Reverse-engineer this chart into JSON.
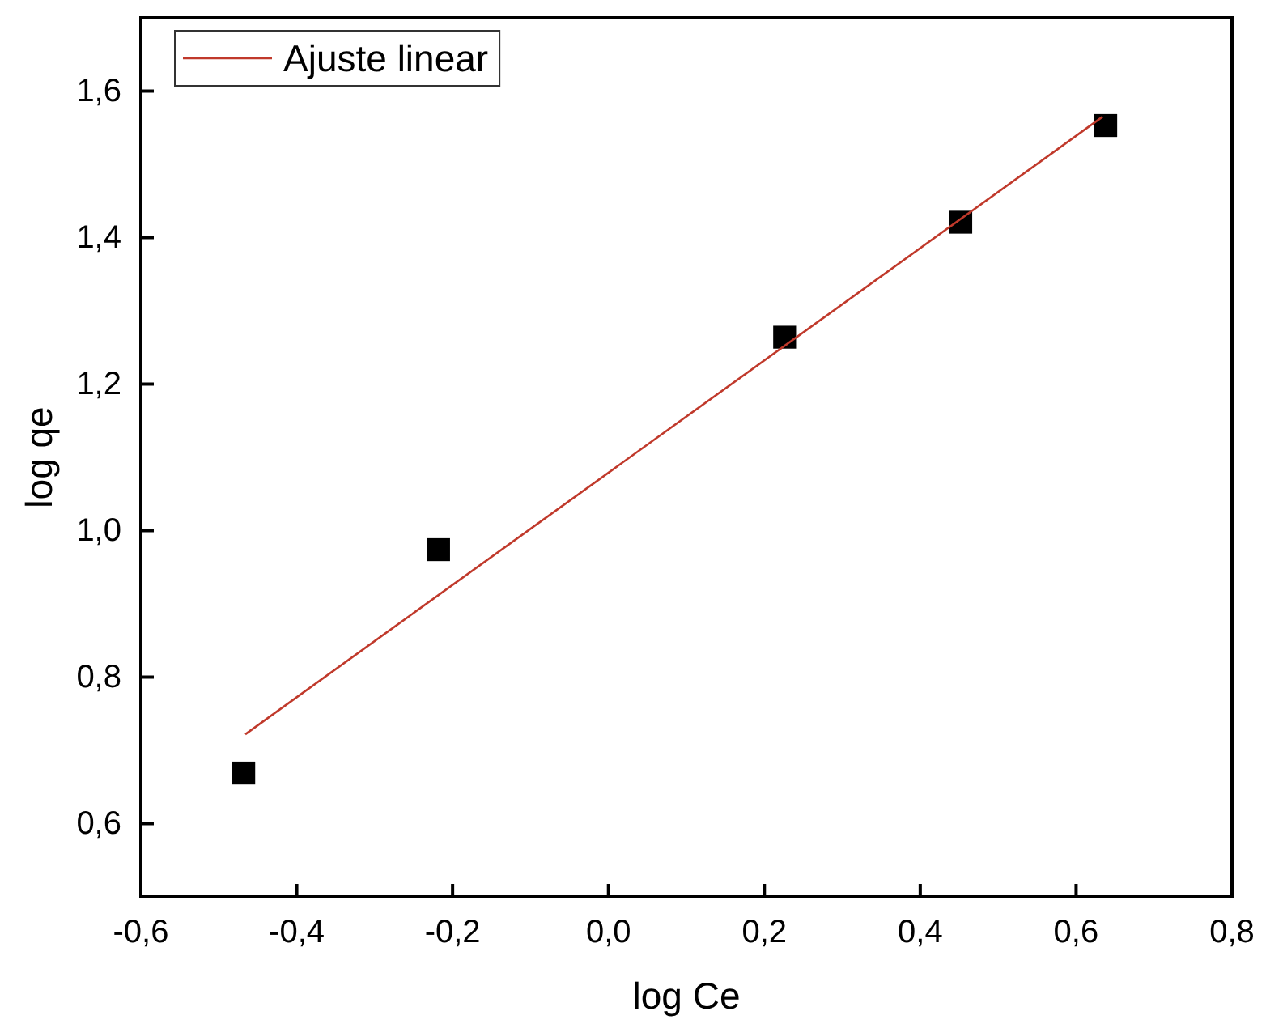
{
  "chart_data": {
    "type": "scatter",
    "xlabel": "log Ce",
    "ylabel": "log qe",
    "xlim": [
      -0.6,
      0.8
    ],
    "xticks": [
      {
        "value": -0.6,
        "label": "-0,6"
      },
      {
        "value": -0.4,
        "label": "-0,4"
      },
      {
        "value": -0.2,
        "label": "-0,2"
      },
      {
        "value": 0,
        "label": "0,0"
      },
      {
        "value": 0.2,
        "label": "0,2"
      },
      {
        "value": 0.4,
        "label": "0,4"
      },
      {
        "value": 0.6,
        "label": "0,6"
      },
      {
        "value": 0.8,
        "label": "0,8"
      }
    ],
    "ylim": [
      0.5,
      1.7
    ],
    "yticks": [
      {
        "value": 0.6,
        "label": "0,6"
      },
      {
        "value": 0.8,
        "label": "0,8"
      },
      {
        "value": 1.0,
        "label": "1,0"
      },
      {
        "value": 1.2,
        "label": "1,2"
      },
      {
        "value": 1.4,
        "label": "1,4"
      },
      {
        "value": 1.6,
        "label": "1,6"
      }
    ],
    "grid": false,
    "legend": "top left",
    "marker": "square",
    "series": [
      {
        "color": "#000000",
        "x": [
          -0.468,
          -0.218,
          0.226,
          0.452,
          0.638
        ],
        "values": [
          0.669,
          0.974,
          1.264,
          1.421,
          1.553
        ]
      },
      {
        "type": "line",
        "marker": "none",
        "name": "Ajuste linear",
        "color": "#c0392b",
        "x": [
          -0.466,
          0.634
        ],
        "values": [
          0.722,
          1.565
        ]
      }
    ]
  }
}
